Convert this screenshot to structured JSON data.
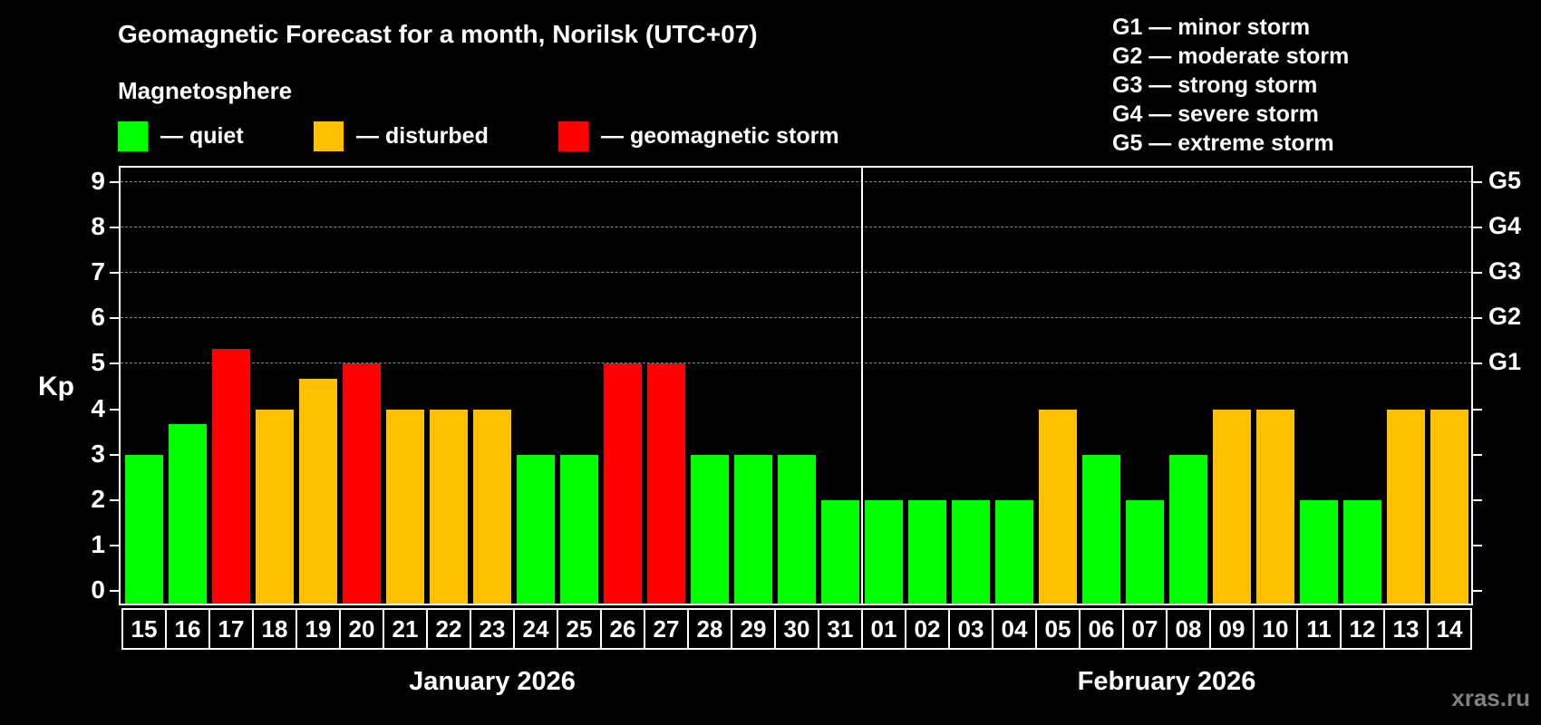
{
  "header": {
    "title": "Geomagnetic Forecast for a month, Norilsk (UTC+07)",
    "subtitle": "Magnetosphere"
  },
  "legend": [
    {
      "label": "— quiet",
      "color": "#00ff00"
    },
    {
      "label": "— disturbed",
      "color": "#ffc000"
    },
    {
      "label": "— geomagnetic storm",
      "color": "#ff0000"
    }
  ],
  "storm_scale": [
    "G1 — minor storm",
    "G2 — moderate storm",
    "G3 — strong storm",
    "G4 — severe storm",
    "G5 — extreme storm"
  ],
  "axis": {
    "ylabel": "Kp",
    "yticks": [
      "0",
      "1",
      "2",
      "3",
      "4",
      "5",
      "6",
      "7",
      "8",
      "9"
    ],
    "right_labels": [
      {
        "kp": 5,
        "label": "G1"
      },
      {
        "kp": 6,
        "label": "G2"
      },
      {
        "kp": 7,
        "label": "G3"
      },
      {
        "kp": 8,
        "label": "G4"
      },
      {
        "kp": 9,
        "label": "G5"
      }
    ]
  },
  "months": [
    {
      "label": "January 2026"
    },
    {
      "label": "February 2026"
    }
  ],
  "watermark": "xras.ru",
  "chart_data": {
    "type": "bar",
    "title": "Geomagnetic Forecast for a month, Norilsk (UTC+07)",
    "xlabel": "",
    "ylabel": "Kp",
    "ylim": [
      0,
      9
    ],
    "grid": true,
    "legend": [
      "quiet",
      "disturbed",
      "geomagnetic storm"
    ],
    "categories": [
      "15",
      "16",
      "17",
      "18",
      "19",
      "20",
      "21",
      "22",
      "23",
      "24",
      "25",
      "26",
      "27",
      "28",
      "29",
      "30",
      "31",
      "01",
      "02",
      "03",
      "04",
      "05",
      "06",
      "07",
      "08",
      "09",
      "10",
      "11",
      "12",
      "13",
      "14"
    ],
    "month_groups": [
      {
        "label": "January 2026",
        "from": "15",
        "to": "31"
      },
      {
        "label": "February 2026",
        "from": "01",
        "to": "14"
      }
    ],
    "values": [
      3,
      3.67,
      5.33,
      4,
      4.67,
      5,
      4,
      4,
      4,
      3,
      3,
      5,
      5,
      3,
      3,
      3,
      2,
      2,
      2,
      2,
      2,
      4,
      3,
      2,
      3,
      4,
      4,
      2,
      2,
      4,
      4
    ],
    "status": [
      "quiet",
      "quiet",
      "storm",
      "disturbed",
      "disturbed",
      "storm",
      "disturbed",
      "disturbed",
      "disturbed",
      "quiet",
      "quiet",
      "storm",
      "storm",
      "quiet",
      "quiet",
      "quiet",
      "quiet",
      "quiet",
      "quiet",
      "quiet",
      "quiet",
      "disturbed",
      "quiet",
      "quiet",
      "quiet",
      "disturbed",
      "disturbed",
      "quiet",
      "quiet",
      "disturbed",
      "disturbed"
    ],
    "colors": {
      "quiet": "#00ff00",
      "disturbed": "#ffc000",
      "storm": "#ff0000"
    },
    "right_axis": {
      "5": "G1",
      "6": "G2",
      "7": "G3",
      "8": "G4",
      "9": "G5"
    }
  }
}
